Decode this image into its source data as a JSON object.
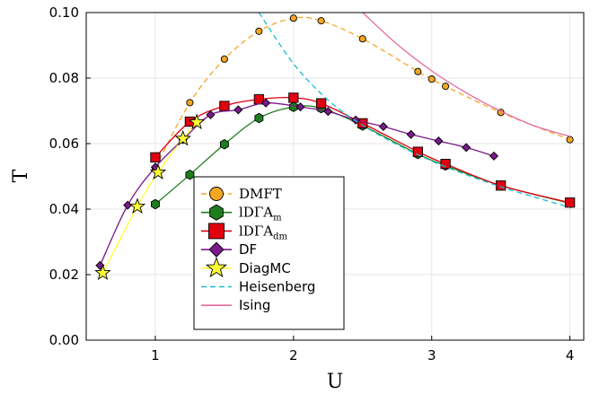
{
  "chart_data": {
    "type": "line",
    "xlabel": "U",
    "ylabel": "T",
    "xlim": [
      0.5,
      4.1
    ],
    "ylim": [
      0.0,
      0.1
    ],
    "x_ticks": [
      1,
      2,
      3,
      4
    ],
    "x_tick_labels": [
      "1",
      "2",
      "3",
      "4"
    ],
    "y_ticks": [
      0.0,
      0.02,
      0.04,
      0.06,
      0.08,
      0.1
    ],
    "y_tick_labels": [
      "0.00",
      "0.02",
      "0.04",
      "0.06",
      "0.08",
      "0.10"
    ],
    "grid": true,
    "legend_position": "lower-center",
    "series": [
      {
        "name": "DMFT",
        "color": "#f5a623",
        "marker": "circle",
        "line_style": "dashed",
        "x": [
          1.0,
          1.25,
          1.5,
          1.75,
          2.0,
          2.2,
          2.5,
          2.9,
          3.0,
          3.1,
          3.5,
          4.0
        ],
        "y": [
          0.0525,
          0.0725,
          0.0858,
          0.0943,
          0.0983,
          0.0975,
          0.092,
          0.082,
          0.0797,
          0.0775,
          0.0695,
          0.0612
        ]
      },
      {
        "name": "lDΓA_m",
        "color": "#1e7d1e",
        "marker": "hexagon",
        "line_style": "solid",
        "x": [
          1.0,
          1.25,
          1.5,
          1.75,
          2.0,
          2.2,
          2.5,
          2.9,
          3.1,
          3.5,
          4.0
        ],
        "y": [
          0.0415,
          0.0505,
          0.0598,
          0.0678,
          0.0712,
          0.0708,
          0.0655,
          0.0568,
          0.0533,
          0.0472,
          0.0418
        ]
      },
      {
        "name": "lDΓA_dm",
        "color": "#e0000f",
        "marker": "square",
        "line_style": "solid",
        "x": [
          1.0,
          1.25,
          1.5,
          1.75,
          2.0,
          2.2,
          2.5,
          2.9,
          3.1,
          3.5,
          4.0
        ],
        "y": [
          0.0558,
          0.0667,
          0.0715,
          0.0735,
          0.074,
          0.0723,
          0.0662,
          0.0575,
          0.0538,
          0.0472,
          0.042
        ]
      },
      {
        "name": "DF",
        "color": "#7a1a8c",
        "marker": "diamond",
        "line_style": "solid",
        "x": [
          0.6,
          0.8,
          1.0,
          1.2,
          1.4,
          1.6,
          1.8,
          2.05,
          2.25,
          2.45,
          2.65,
          2.85,
          3.05,
          3.25,
          3.45
        ],
        "y": [
          0.0228,
          0.0412,
          0.0528,
          0.0612,
          0.0688,
          0.0703,
          0.0724,
          0.0712,
          0.0698,
          0.0672,
          0.0652,
          0.0628,
          0.0608,
          0.0588,
          0.0562
        ]
      },
      {
        "name": "DiagMC",
        "color": "#ffff33",
        "marker": "star",
        "line_style": "solid",
        "x": [
          0.62,
          0.87,
          1.02,
          1.2,
          1.3
        ],
        "y": [
          0.0205,
          0.0408,
          0.0512,
          0.0615,
          0.0665
        ]
      },
      {
        "name": "Heisenberg",
        "color": "#17becf",
        "marker": "none",
        "line_style": "dashed",
        "x": [
          1.75,
          2.0,
          2.25,
          2.5,
          2.75,
          3.0,
          3.25,
          3.5,
          3.75,
          4.0
        ],
        "y": [
          0.1,
          0.0844,
          0.0733,
          0.0656,
          0.0597,
          0.0547,
          0.0505,
          0.0468,
          0.0436,
          0.0405
        ]
      },
      {
        "name": "Ising",
        "color": "#e8699e",
        "marker": "none",
        "line_style": "solid",
        "x": [
          2.5,
          2.75,
          3.0,
          3.25,
          3.5,
          3.75,
          4.0
        ],
        "y": [
          0.1,
          0.0903,
          0.0822,
          0.0755,
          0.0699,
          0.0653,
          0.0622
        ]
      }
    ]
  }
}
